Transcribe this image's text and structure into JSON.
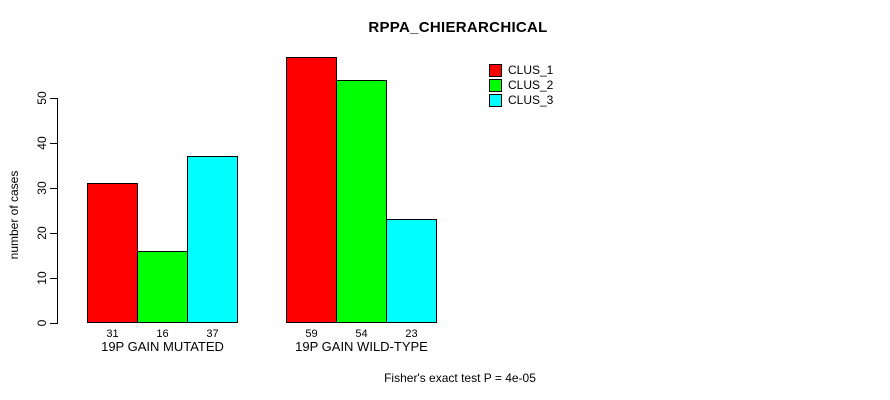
{
  "figure": {
    "title": "RPPA_CHIERARCHICAL",
    "annotation": "Fisher's exact test P = 4e-05"
  },
  "chart_data": {
    "type": "bar",
    "title": "RPPA_CHIERARCHICAL",
    "xlabel": "",
    "ylabel": "number of cases",
    "categories": [
      "19P GAIN MUTATED",
      "19P GAIN WILD-TYPE"
    ],
    "series": [
      {
        "name": "CLUS_1",
        "color": "#FF0000",
        "values": [
          31,
          59
        ]
      },
      {
        "name": "CLUS_2",
        "color": "#00FF00",
        "values": [
          16,
          54
        ]
      },
      {
        "name": "CLUS_3",
        "color": "#00FFFF",
        "values": [
          37,
          23
        ]
      }
    ],
    "bar_value_labels": [
      [
        31,
        16,
        37
      ],
      [
        59,
        54,
        23
      ]
    ],
    "yticks": [
      0,
      10,
      20,
      30,
      40,
      50
    ],
    "ylim": [
      0,
      59
    ],
    "grid": false,
    "legend_position": "top-right",
    "legend_entries": [
      "CLUS_1",
      "CLUS_2",
      "CLUS_3"
    ],
    "annotation": "Fisher's exact test P = 4e-05",
    "colors": {
      "background": "#FFFFFF",
      "axis": "#000000",
      "text": "#000000"
    }
  }
}
